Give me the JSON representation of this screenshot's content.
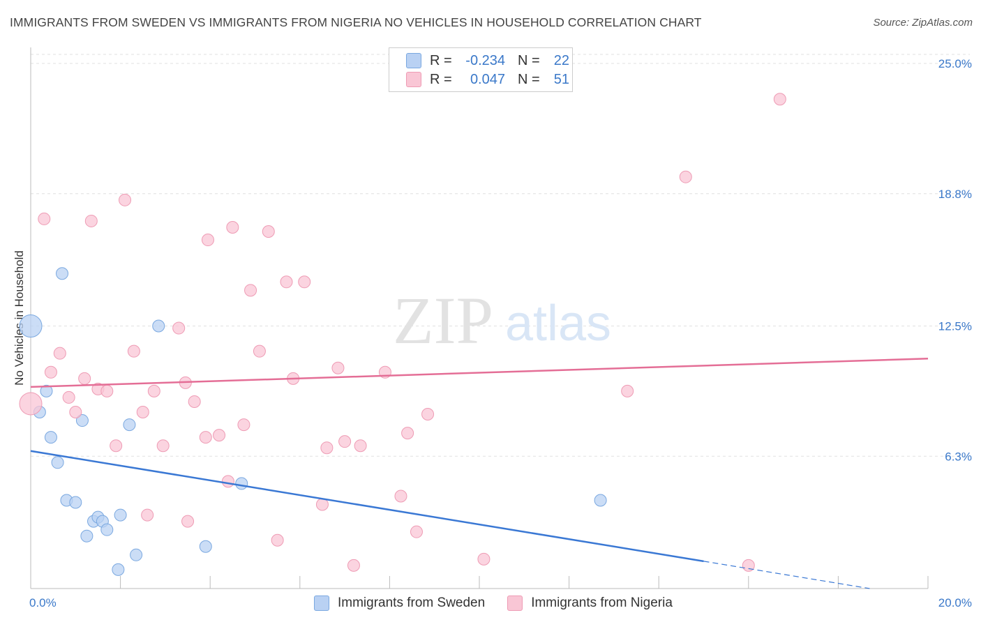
{
  "title": "IMMIGRANTS FROM SWEDEN VS IMMIGRANTS FROM NIGERIA NO VEHICLES IN HOUSEHOLD CORRELATION CHART",
  "source": "Source: ZipAtlas.com",
  "watermark": {
    "zip": "ZIP",
    "atlas": "atlas"
  },
  "legend": {
    "rows": [
      {
        "r_label": "R =",
        "r_value": "-0.234",
        "n_label": "N =",
        "n_value": "22"
      },
      {
        "r_label": "R =",
        "r_value": "0.047",
        "n_label": "N =",
        "n_value": "51"
      }
    ]
  },
  "bottom_legend": {
    "sweden": "Immigrants from Sweden",
    "nigeria": "Immigrants from Nigeria"
  },
  "colors": {
    "sweden_fill": "#b9d1f3",
    "sweden_stroke": "#7aa8e0",
    "sweden_line": "#3a78d4",
    "nigeria_fill": "#f9c6d5",
    "nigeria_stroke": "#ee9bb4",
    "nigeria_line": "#e46e96",
    "tick_label": "#3a78c9",
    "grid": "#e0e0e0"
  },
  "chart_data": {
    "type": "scatter",
    "title": "IMMIGRANTS FROM SWEDEN VS IMMIGRANTS FROM NIGERIA NO VEHICLES IN HOUSEHOLD CORRELATION CHART",
    "xlabel": "",
    "ylabel": "No Vehicles in Household",
    "xlim": [
      0,
      20
    ],
    "ylim": [
      0,
      25.5
    ],
    "x_tick_labels": [
      "0.0%",
      "20.0%"
    ],
    "y_ticks": [
      6.3,
      12.5,
      18.8,
      25.0
    ],
    "y_tick_labels": [
      "6.3%",
      "12.5%",
      "18.8%",
      "25.0%"
    ],
    "grid": true,
    "legend_position": "top-center",
    "series": [
      {
        "name": "Immigrants from Sweden",
        "points": [
          {
            "x": 0.0,
            "y": 12.5,
            "size": "large"
          },
          {
            "x": 0.2,
            "y": 8.4
          },
          {
            "x": 0.35,
            "y": 9.4
          },
          {
            "x": 0.45,
            "y": 7.2
          },
          {
            "x": 0.6,
            "y": 6.0
          },
          {
            "x": 0.7,
            "y": 15.0
          },
          {
            "x": 0.8,
            "y": 4.2
          },
          {
            "x": 1.0,
            "y": 4.1
          },
          {
            "x": 1.15,
            "y": 8.0
          },
          {
            "x": 1.25,
            "y": 2.5
          },
          {
            "x": 1.4,
            "y": 3.2
          },
          {
            "x": 1.5,
            "y": 3.4
          },
          {
            "x": 1.6,
            "y": 3.2
          },
          {
            "x": 1.7,
            "y": 2.8
          },
          {
            "x": 1.95,
            "y": 0.9
          },
          {
            "x": 2.0,
            "y": 3.5
          },
          {
            "x": 2.2,
            "y": 7.8
          },
          {
            "x": 2.35,
            "y": 1.6
          },
          {
            "x": 2.85,
            "y": 12.5
          },
          {
            "x": 3.9,
            "y": 2.0
          },
          {
            "x": 4.7,
            "y": 5.0
          },
          {
            "x": 12.7,
            "y": 4.2
          }
        ]
      },
      {
        "name": "Immigrants from Nigeria",
        "points": [
          {
            "x": 0.0,
            "y": 8.8,
            "size": "large"
          },
          {
            "x": 0.3,
            "y": 17.6
          },
          {
            "x": 0.45,
            "y": 10.3
          },
          {
            "x": 0.65,
            "y": 11.2
          },
          {
            "x": 0.85,
            "y": 9.1
          },
          {
            "x": 1.0,
            "y": 8.4
          },
          {
            "x": 1.2,
            "y": 10.0
          },
          {
            "x": 1.35,
            "y": 17.5
          },
          {
            "x": 1.5,
            "y": 9.5
          },
          {
            "x": 1.7,
            "y": 9.4
          },
          {
            "x": 1.9,
            "y": 6.8
          },
          {
            "x": 2.1,
            "y": 18.5
          },
          {
            "x": 2.3,
            "y": 11.3
          },
          {
            "x": 2.5,
            "y": 8.4
          },
          {
            "x": 2.6,
            "y": 3.5
          },
          {
            "x": 2.75,
            "y": 9.4
          },
          {
            "x": 2.95,
            "y": 6.8
          },
          {
            "x": 3.3,
            "y": 12.4
          },
          {
            "x": 3.45,
            "y": 9.8
          },
          {
            "x": 3.5,
            "y": 3.2
          },
          {
            "x": 3.65,
            "y": 8.9
          },
          {
            "x": 3.9,
            "y": 7.2
          },
          {
            "x": 3.95,
            "y": 16.6
          },
          {
            "x": 4.2,
            "y": 7.3
          },
          {
            "x": 4.4,
            "y": 5.1
          },
          {
            "x": 4.5,
            "y": 17.2
          },
          {
            "x": 4.75,
            "y": 7.8
          },
          {
            "x": 4.9,
            "y": 14.2
          },
          {
            "x": 5.1,
            "y": 11.3
          },
          {
            "x": 5.3,
            "y": 17.0
          },
          {
            "x": 5.5,
            "y": 2.3
          },
          {
            "x": 5.7,
            "y": 14.6
          },
          {
            "x": 5.85,
            "y": 10.0
          },
          {
            "x": 6.1,
            "y": 14.6
          },
          {
            "x": 6.5,
            "y": 4.0
          },
          {
            "x": 6.6,
            "y": 6.7
          },
          {
            "x": 6.85,
            "y": 10.5
          },
          {
            "x": 7.0,
            "y": 7.0
          },
          {
            "x": 7.2,
            "y": 1.1
          },
          {
            "x": 7.35,
            "y": 6.8
          },
          {
            "x": 7.9,
            "y": 10.3
          },
          {
            "x": 8.25,
            "y": 4.4
          },
          {
            "x": 8.4,
            "y": 7.4
          },
          {
            "x": 8.6,
            "y": 2.7
          },
          {
            "x": 8.85,
            "y": 8.3
          },
          {
            "x": 10.1,
            "y": 1.4
          },
          {
            "x": 10.5,
            "y": 24.8
          },
          {
            "x": 13.3,
            "y": 9.4
          },
          {
            "x": 14.6,
            "y": 19.6
          },
          {
            "x": 16.0,
            "y": 1.1
          },
          {
            "x": 16.7,
            "y": 23.3
          }
        ]
      }
    ],
    "trendlines": [
      {
        "series": "Immigrants from Sweden",
        "x0": 0,
        "y0": 6.55,
        "x1": 15.0,
        "y1": 1.3,
        "dashed_to_x": 18.7,
        "dashed_to_y": 0.0
      },
      {
        "series": "Immigrants from Nigeria",
        "x0": 0,
        "y0": 9.6,
        "x1": 20.0,
        "y1": 10.95
      }
    ]
  }
}
